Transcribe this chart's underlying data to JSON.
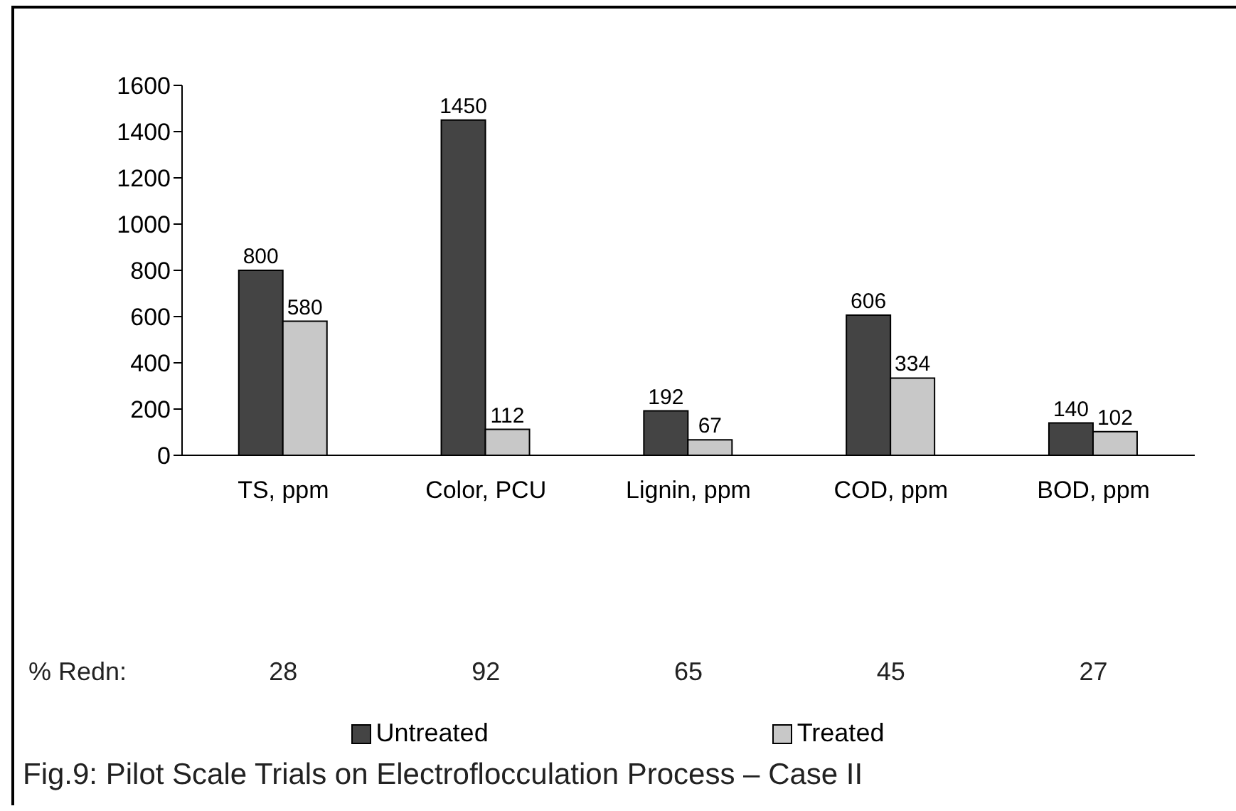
{
  "chart_data": {
    "type": "bar",
    "title": "Fig.9: Pilot Scale Trials on Electroflocculation Process – Case II",
    "categories": [
      "TS, ppm",
      "Color, PCU",
      "Lignin, ppm",
      "COD, ppm",
      "BOD, ppm"
    ],
    "series": [
      {
        "name": "Untreated",
        "color": "#444444",
        "values": [
          800,
          1450,
          192,
          606,
          140
        ]
      },
      {
        "name": "Treated",
        "color": "#c8c8c8",
        "values": [
          580,
          112,
          67,
          334,
          102
        ]
      }
    ],
    "ylim": [
      0,
      1600
    ],
    "yticks": [
      0,
      200,
      400,
      600,
      800,
      1000,
      1200,
      1400,
      1600
    ],
    "data_labels": true,
    "legend": "bottom",
    "annotations": [
      "% Redn:",
      "28",
      "92",
      "65",
      "45",
      "27"
    ]
  }
}
